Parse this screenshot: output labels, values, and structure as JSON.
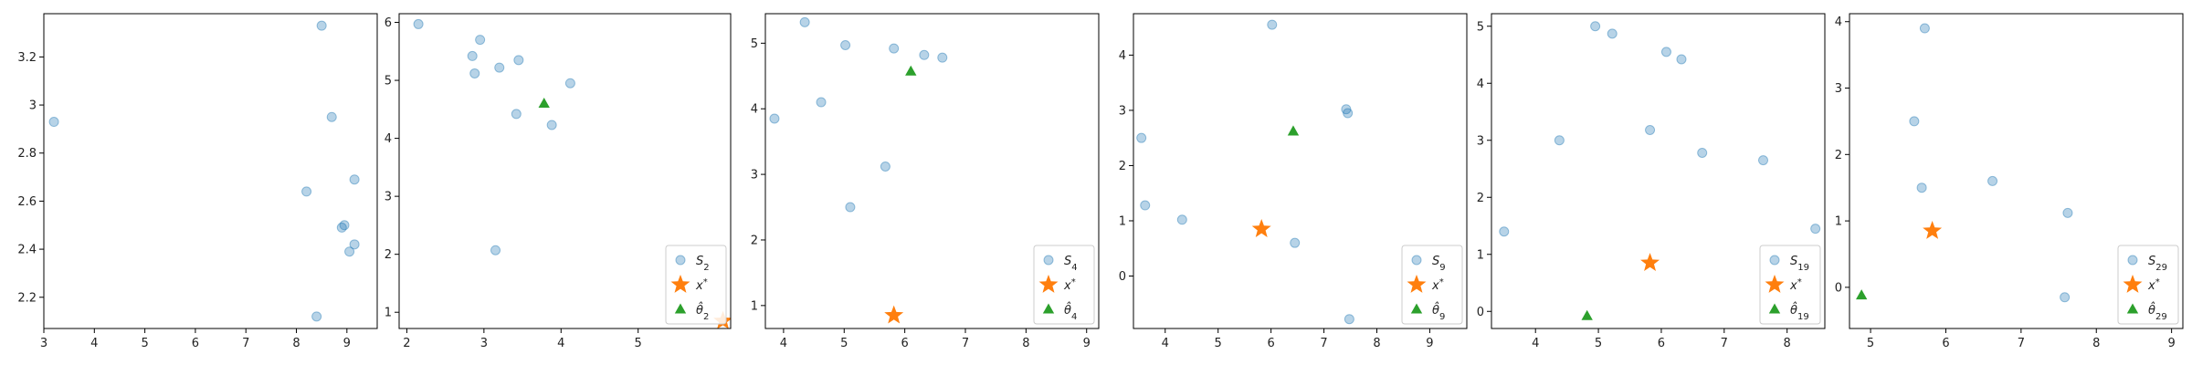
{
  "colors": {
    "sample": "#1f77b4",
    "xstar": "#ff7f0e",
    "theta": "#2ca02c"
  },
  "chart_data": [
    {
      "type": "scatter",
      "xlim": [
        3.0,
        9.6
      ],
      "ylim": [
        2.07,
        3.38
      ],
      "xticks": [
        3,
        4,
        5,
        6,
        7,
        8,
        9
      ],
      "yticks": [
        2.2,
        2.4,
        2.6,
        2.8,
        3.0,
        3.2
      ],
      "series": [
        {
          "kind": "sample",
          "points": [
            [
              3.2,
              2.93
            ],
            [
              8.2,
              2.64
            ],
            [
              8.4,
              2.12
            ],
            [
              8.5,
              3.33
            ],
            [
              8.7,
              2.95
            ],
            [
              8.9,
              2.49
            ],
            [
              8.95,
              2.5
            ],
            [
              9.05,
              2.39
            ],
            [
              9.15,
              2.42
            ],
            [
              9.15,
              2.69
            ]
          ]
        }
      ],
      "legend": []
    },
    {
      "type": "scatter",
      "xlim": [
        1.9,
        6.2
      ],
      "ylim": [
        0.72,
        6.15
      ],
      "xticks": [
        2,
        3,
        4,
        5
      ],
      "yticks": [
        1,
        2,
        3,
        4,
        5,
        6
      ],
      "series": [
        {
          "kind": "sample",
          "points": [
            [
              2.15,
              5.97
            ],
            [
              2.85,
              5.42
            ],
            [
              2.88,
              5.12
            ],
            [
              2.95,
              5.7
            ],
            [
              3.15,
              2.07
            ],
            [
              3.2,
              5.22
            ],
            [
              3.42,
              4.42
            ],
            [
              3.45,
              5.35
            ],
            [
              3.88,
              4.23
            ],
            [
              4.12,
              4.95
            ]
          ]
        },
        {
          "kind": "xstar",
          "points": [
            [
              6.1,
              0.85
            ]
          ]
        },
        {
          "kind": "theta",
          "points": [
            [
              3.78,
              4.6
            ]
          ]
        }
      ],
      "legend": [
        "S_2",
        "x^*",
        "θ̂_2"
      ]
    },
    {
      "type": "scatter",
      "xlim": [
        3.7,
        9.2
      ],
      "ylim": [
        0.65,
        5.45
      ],
      "xticks": [
        4,
        5,
        6,
        7,
        8,
        9
      ],
      "yticks": [
        1,
        2,
        3,
        4,
        5
      ],
      "series": [
        {
          "kind": "sample",
          "points": [
            [
              3.85,
              3.85
            ],
            [
              4.35,
              5.32
            ],
            [
              4.62,
              4.1
            ],
            [
              5.02,
              4.97
            ],
            [
              5.1,
              2.5
            ],
            [
              5.68,
              3.12
            ],
            [
              5.82,
              4.92
            ],
            [
              6.32,
              4.82
            ],
            [
              6.62,
              4.78
            ]
          ]
        },
        {
          "kind": "xstar",
          "points": [
            [
              5.82,
              0.85
            ]
          ]
        },
        {
          "kind": "theta",
          "points": [
            [
              6.1,
              4.57
            ]
          ]
        }
      ],
      "legend": [
        "S_4",
        "x^*",
        "θ̂_4"
      ]
    },
    {
      "type": "scatter",
      "xlim": [
        3.4,
        9.7
      ],
      "ylim": [
        -0.95,
        4.75
      ],
      "xticks": [
        4,
        5,
        6,
        7,
        8,
        9
      ],
      "yticks": [
        0,
        1,
        2,
        3,
        4
      ],
      "series": [
        {
          "kind": "sample",
          "points": [
            [
              3.55,
              2.5
            ],
            [
              3.62,
              1.28
            ],
            [
              4.32,
              1.02
            ],
            [
              6.02,
              4.55
            ],
            [
              6.45,
              0.6
            ],
            [
              7.42,
              3.02
            ],
            [
              7.45,
              2.95
            ],
            [
              7.48,
              -0.78
            ]
          ]
        },
        {
          "kind": "xstar",
          "points": [
            [
              5.82,
              0.85
            ]
          ]
        },
        {
          "kind": "theta",
          "points": [
            [
              6.42,
              2.62
            ]
          ]
        }
      ],
      "legend": [
        "S_9",
        "x^*",
        "θ̂_9"
      ]
    },
    {
      "type": "scatter",
      "xlim": [
        3.3,
        8.6
      ],
      "ylim": [
        -0.3,
        5.22
      ],
      "xticks": [
        4,
        5,
        6,
        7,
        8
      ],
      "yticks": [
        0,
        1,
        2,
        3,
        4,
        5
      ],
      "series": [
        {
          "kind": "sample",
          "points": [
            [
              3.5,
              1.4
            ],
            [
              4.38,
              3.0
            ],
            [
              4.95,
              5.0
            ],
            [
              5.22,
              4.87
            ],
            [
              5.82,
              3.18
            ],
            [
              6.08,
              4.55
            ],
            [
              6.32,
              4.42
            ],
            [
              6.65,
              2.78
            ],
            [
              7.62,
              2.65
            ],
            [
              8.45,
              1.45
            ]
          ]
        },
        {
          "kind": "xstar",
          "points": [
            [
              5.82,
              0.85
            ]
          ]
        },
        {
          "kind": "theta",
          "points": [
            [
              4.82,
              -0.08
            ]
          ]
        }
      ],
      "legend": [
        "S_19",
        "x^*",
        "θ̂_19"
      ]
    },
    {
      "type": "scatter",
      "xlim": [
        4.72,
        9.15
      ],
      "ylim": [
        -0.62,
        4.12
      ],
      "xticks": [
        5,
        6,
        7,
        8,
        9
      ],
      "yticks": [
        0,
        1,
        2,
        3,
        4
      ],
      "series": [
        {
          "kind": "sample",
          "points": [
            [
              5.58,
              2.5
            ],
            [
              5.68,
              1.5
            ],
            [
              5.72,
              3.9
            ],
            [
              6.62,
              1.6
            ],
            [
              7.58,
              -0.15
            ],
            [
              7.62,
              1.12
            ]
          ]
        },
        {
          "kind": "xstar",
          "points": [
            [
              5.82,
              0.85
            ]
          ]
        },
        {
          "kind": "theta",
          "points": [
            [
              4.88,
              -0.12
            ]
          ]
        }
      ],
      "legend": [
        "S_29",
        "x^*",
        "θ̂_29"
      ]
    }
  ]
}
